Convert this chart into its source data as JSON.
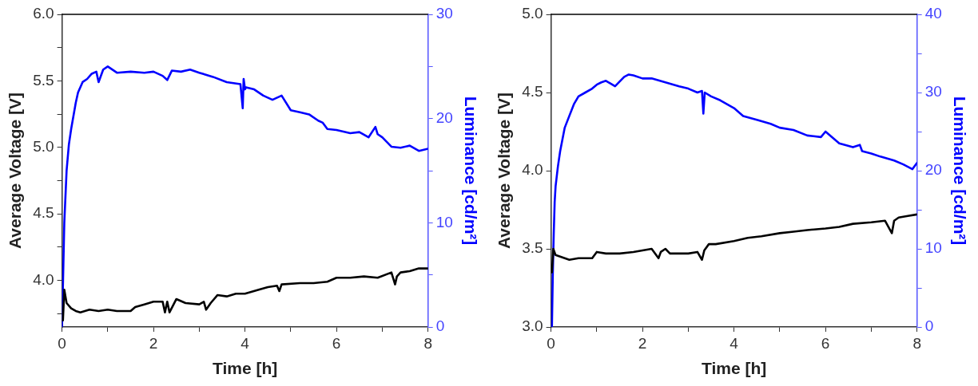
{
  "chart_data": [
    {
      "type": "line",
      "xlabel": "Time [h]",
      "ylabel": "Average Voltage [V]",
      "y2label": "Luminance [cd/m²]",
      "xlim": [
        0,
        8
      ],
      "xticks": [
        0,
        {
          "value": 1,
          "label": null
        },
        2,
        {
          "value": 3,
          "label": null
        },
        4,
        {
          "value": 5,
          "label": null
        },
        6,
        {
          "value": 7,
          "label": null
        },
        8
      ],
      "ylim": [
        3.65,
        6
      ],
      "yticks": [
        {
          "value": 3.75,
          "label": null
        },
        {
          "value": 4,
          "label": "4.0"
        },
        {
          "value": 4.25,
          "label": null
        },
        {
          "value": 4.5,
          "label": "4.5"
        },
        {
          "value": 4.75,
          "label": null
        },
        {
          "value": 5,
          "label": "5.0"
        },
        {
          "value": 5.25,
          "label": null
        },
        {
          "value": 5.5,
          "label": "5.5"
        },
        {
          "value": 5.75,
          "label": null
        },
        {
          "value": 6,
          "label": "6.0"
        }
      ],
      "y2lim": [
        0,
        30
      ],
      "y2ticks": [
        0,
        {
          "value": 5,
          "label": null
        },
        10,
        {
          "value": 15,
          "label": null
        },
        20,
        {
          "value": 25,
          "label": null
        },
        30
      ],
      "grid": false,
      "legend": false,
      "marker": "none",
      "line_style": "solid",
      "series": [
        {
          "color": "#000000",
          "x": [
            0.02,
            0.05,
            0.1,
            0.2,
            0.3,
            0.4,
            0.6,
            0.8,
            1.0,
            1.2,
            1.5,
            1.6,
            1.8,
            2.0,
            2.2,
            2.25,
            2.3,
            2.35,
            2.5,
            2.7,
            3.0,
            3.1,
            3.15,
            3.25,
            3.4,
            3.6,
            3.8,
            4.0,
            4.3,
            4.5,
            4.7,
            4.75,
            4.8,
            5.2,
            5.5,
            5.8,
            6.0,
            6.3,
            6.6,
            6.9,
            7.2,
            7.28,
            7.32,
            7.4,
            7.6,
            7.8,
            8.0
          ],
          "values": [
            3.7,
            3.93,
            3.83,
            3.79,
            3.77,
            3.76,
            3.78,
            3.77,
            3.78,
            3.77,
            3.77,
            3.8,
            3.82,
            3.84,
            3.84,
            3.76,
            3.84,
            3.76,
            3.86,
            3.83,
            3.82,
            3.84,
            3.78,
            3.83,
            3.89,
            3.88,
            3.9,
            3.9,
            3.93,
            3.95,
            3.96,
            3.92,
            3.97,
            3.98,
            3.98,
            3.99,
            4.02,
            4.02,
            4.03,
            4.02,
            4.06,
            3.97,
            4.03,
            4.06,
            4.07,
            4.09,
            4.09
          ]
        },
        {
          "color": "#0000ff",
          "axis": "y2",
          "x": [
            0.0,
            0.03,
            0.05,
            0.08,
            0.1,
            0.15,
            0.2,
            0.3,
            0.35,
            0.45,
            0.55,
            0.65,
            0.75,
            0.8,
            0.9,
            1.0,
            1.2,
            1.5,
            1.8,
            2.0,
            2.2,
            2.3,
            2.4,
            2.6,
            2.8,
            3.0,
            3.3,
            3.6,
            3.9,
            3.95,
            3.97,
            4.0,
            4.02,
            4.2,
            4.4,
            4.6,
            4.8,
            5.0,
            5.2,
            5.4,
            5.6,
            5.7,
            5.8,
            6.0,
            6.3,
            6.5,
            6.7,
            6.85,
            6.9,
            7.0,
            7.2,
            7.4,
            7.6,
            7.8,
            8.0
          ],
          "values": [
            0,
            6,
            10,
            13,
            15,
            17.5,
            19,
            21.5,
            22.5,
            23.5,
            23.8,
            24.3,
            24.5,
            23.5,
            24.7,
            25,
            24.4,
            24.5,
            24.4,
            24.5,
            24.1,
            23.7,
            24.6,
            24.5,
            24.7,
            24.4,
            24,
            23.5,
            23.3,
            21,
            23.8,
            22.8,
            23,
            22.8,
            22.2,
            21.8,
            22.2,
            20.8,
            20.6,
            20.4,
            19.8,
            19.6,
            19,
            18.9,
            18.6,
            18.7,
            18.2,
            19.2,
            18.5,
            18.2,
            17.3,
            17.2,
            17.4,
            16.9,
            17.1
          ]
        }
      ]
    },
    {
      "type": "line",
      "xlabel": "Time [h]",
      "ylabel": "Average Voltage [V]",
      "y2label": "Luminance [cd/m²]",
      "xlim": [
        0,
        8
      ],
      "xticks": [
        0,
        {
          "value": 1,
          "label": null
        },
        2,
        {
          "value": 3,
          "label": null
        },
        4,
        {
          "value": 5,
          "label": null
        },
        6,
        {
          "value": 7,
          "label": null
        },
        8
      ],
      "ylim": [
        3,
        5
      ],
      "yticks": [
        {
          "value": 3,
          "label": "3.0"
        },
        {
          "value": 3.5,
          "label": "3.5"
        },
        {
          "value": 4,
          "label": "4.0"
        },
        {
          "value": 4.5,
          "label": "4.5"
        },
        {
          "value": 5,
          "label": "5.0"
        }
      ],
      "y2lim": [
        0,
        40
      ],
      "y2ticks": [
        0,
        {
          "value": 5,
          "label": null
        },
        10,
        {
          "value": 15,
          "label": null
        },
        20,
        {
          "value": 25,
          "label": null
        },
        30,
        {
          "value": 35,
          "label": null
        },
        40
      ],
      "grid": false,
      "legend": false,
      "marker": "none",
      "line_style": "solid",
      "series": [
        {
          "color": "#000000",
          "x": [
            0.02,
            0.05,
            0.1,
            0.2,
            0.4,
            0.6,
            0.9,
            1.0,
            1.2,
            1.5,
            1.8,
            2.0,
            2.2,
            2.35,
            2.4,
            2.5,
            2.6,
            2.8,
            3.0,
            3.2,
            3.3,
            3.35,
            3.45,
            3.6,
            4.0,
            4.3,
            4.6,
            5.0,
            5.3,
            5.6,
            6.0,
            6.3,
            6.6,
            7.0,
            7.3,
            7.45,
            7.5,
            7.6,
            7.8,
            8.0
          ],
          "values": [
            3.35,
            3.5,
            3.46,
            3.45,
            3.43,
            3.44,
            3.44,
            3.48,
            3.47,
            3.47,
            3.48,
            3.49,
            3.5,
            3.44,
            3.48,
            3.5,
            3.47,
            3.47,
            3.47,
            3.48,
            3.43,
            3.49,
            3.53,
            3.53,
            3.55,
            3.57,
            3.58,
            3.6,
            3.61,
            3.62,
            3.63,
            3.64,
            3.66,
            3.67,
            3.68,
            3.6,
            3.68,
            3.7,
            3.71,
            3.72
          ]
        },
        {
          "color": "#0000ff",
          "axis": "y2",
          "x": [
            0.02,
            0.04,
            0.06,
            0.08,
            0.1,
            0.15,
            0.2,
            0.25,
            0.3,
            0.4,
            0.5,
            0.6,
            0.75,
            0.9,
            1.0,
            1.1,
            1.2,
            1.4,
            1.6,
            1.7,
            1.8,
            2.0,
            2.2,
            2.5,
            2.8,
            3.0,
            3.2,
            3.3,
            3.33,
            3.36,
            3.5,
            3.7,
            4.0,
            4.2,
            4.5,
            4.8,
            5.0,
            5.3,
            5.6,
            5.9,
            6.0,
            6.3,
            6.6,
            6.75,
            6.8,
            7.0,
            7.2,
            7.5,
            7.7,
            7.9,
            8.0
          ],
          "values": [
            0,
            7,
            12,
            16,
            18,
            20.5,
            22.5,
            24,
            25.5,
            27,
            28.5,
            29.5,
            30,
            30.5,
            31,
            31.3,
            31.5,
            30.8,
            32,
            32.3,
            32.2,
            31.8,
            31.8,
            31.3,
            30.8,
            30.5,
            30,
            30.2,
            27.3,
            30,
            29.5,
            29,
            28,
            27,
            26.5,
            26,
            25.5,
            25.2,
            24.5,
            24.3,
            25,
            23.5,
            23,
            23.3,
            22.5,
            22.2,
            21.8,
            21.3,
            20.8,
            20.2,
            21
          ]
        }
      ]
    }
  ]
}
